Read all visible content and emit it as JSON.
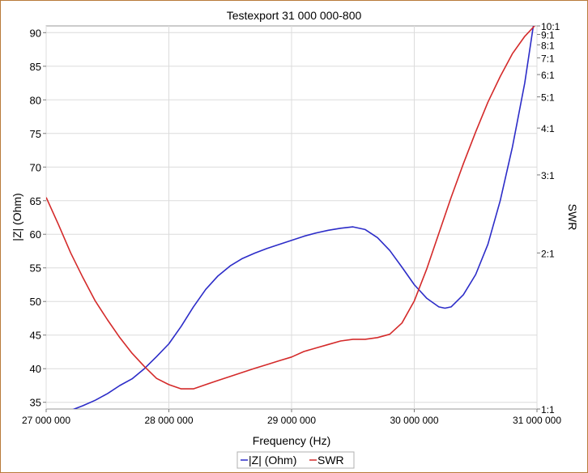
{
  "chart_data": {
    "type": "line",
    "title": "Testexport 31 000 000-800",
    "xlabel": "Frequency (Hz)",
    "ylabel_left": "|Z| (Ohm)",
    "ylabel_right": "SWR",
    "xlim": [
      27000000,
      31000000
    ],
    "ylim_left": [
      34,
      91
    ],
    "right_axis_scale": "swr",
    "grid": true,
    "legend_position": "bottom",
    "x_ticks": [
      {
        "value": 27000000,
        "label": "27 000 000"
      },
      {
        "value": 28000000,
        "label": "28 000 000"
      },
      {
        "value": 29000000,
        "label": "29 000 000"
      },
      {
        "value": 30000000,
        "label": "30 000 000"
      },
      {
        "value": 31000000,
        "label": "31 000 000"
      }
    ],
    "y_left_ticks": [
      35,
      40,
      45,
      50,
      55,
      60,
      65,
      70,
      75,
      80,
      85,
      90
    ],
    "y_right_ticks": [
      {
        "value": 1,
        "label": "1:1"
      },
      {
        "value": 2,
        "label": "2:1"
      },
      {
        "value": 3,
        "label": "3:1"
      },
      {
        "value": 4,
        "label": "4:1"
      },
      {
        "value": 5,
        "label": "5:1"
      },
      {
        "value": 6,
        "label": "6:1"
      },
      {
        "value": 7,
        "label": "7:1"
      },
      {
        "value": 8,
        "label": "8:1"
      },
      {
        "value": 9,
        "label": "9:1"
      },
      {
        "value": 10,
        "label": "10:1"
      }
    ],
    "series": [
      {
        "name": "|Z| (Ohm)",
        "axis": "left",
        "color": "#2c2cc8",
        "x": [
          27000000,
          27100000,
          27200000,
          27300000,
          27400000,
          27500000,
          27600000,
          27700000,
          27800000,
          27900000,
          28000000,
          28100000,
          28200000,
          28300000,
          28400000,
          28500000,
          28600000,
          28700000,
          28800000,
          28900000,
          29000000,
          29100000,
          29200000,
          29300000,
          29400000,
          29500000,
          29600000,
          29700000,
          29800000,
          29900000,
          30000000,
          30100000,
          30200000,
          30250000,
          30300000,
          30400000,
          30500000,
          30600000,
          30700000,
          30800000,
          30900000,
          30970000
        ],
        "values": [
          33.8,
          33.6,
          33.8,
          34.5,
          35.3,
          36.3,
          37.5,
          38.5,
          40.0,
          41.8,
          43.7,
          46.3,
          49.2,
          51.8,
          53.8,
          55.3,
          56.4,
          57.2,
          57.9,
          58.5,
          59.1,
          59.7,
          60.2,
          60.6,
          60.9,
          61.1,
          60.7,
          59.5,
          57.6,
          55.1,
          52.5,
          50.5,
          49.2,
          49.0,
          49.2,
          51.0,
          54.0,
          58.5,
          65.0,
          73.0,
          82.5,
          91.0
        ]
      },
      {
        "name": "SWR",
        "axis": "right",
        "color": "#d42a2a",
        "x": [
          27000000,
          27100000,
          27200000,
          27300000,
          27400000,
          27500000,
          27600000,
          27700000,
          27800000,
          27900000,
          28000000,
          28100000,
          28200000,
          28300000,
          28400000,
          28500000,
          28600000,
          28700000,
          28800000,
          28900000,
          29000000,
          29100000,
          29200000,
          29300000,
          29400000,
          29500000,
          29600000,
          29700000,
          29800000,
          29900000,
          30000000,
          30100000,
          30200000,
          30300000,
          30400000,
          30500000,
          30600000,
          30700000,
          30800000,
          30900000,
          30980000
        ],
        "values": [
          2.65,
          2.3,
          2.0,
          1.78,
          1.6,
          1.47,
          1.36,
          1.27,
          1.2,
          1.14,
          1.11,
          1.09,
          1.09,
          1.11,
          1.13,
          1.15,
          1.17,
          1.19,
          1.21,
          1.23,
          1.25,
          1.28,
          1.3,
          1.32,
          1.34,
          1.35,
          1.35,
          1.36,
          1.38,
          1.45,
          1.6,
          1.85,
          2.2,
          2.65,
          3.2,
          3.9,
          4.8,
          5.9,
          7.3,
          8.8,
          10.0
        ]
      }
    ]
  }
}
